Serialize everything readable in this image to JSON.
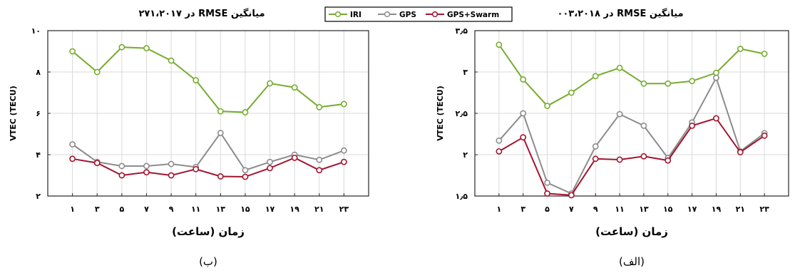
{
  "legend": {
    "items": [
      {
        "label": "IRI",
        "color": "#77ac30"
      },
      {
        "label": "GPS",
        "color": "#8c8c8c"
      },
      {
        "label": "GPS+Swarm",
        "color": "#a2142f"
      }
    ]
  },
  "chart_data": [
    {
      "type": "line",
      "panel": "left",
      "title": "میانگین RMSE در ۲۷۱،۲۰۱۷",
      "xlabel": "زمان (ساعت)",
      "ylabel": "VTEC (TECU)",
      "caption": "(ب)",
      "x": [
        1,
        3,
        5,
        7,
        9,
        11,
        13,
        15,
        17,
        19,
        21,
        23
      ],
      "x_tick_labels": [
        "۱",
        "۳",
        "۵",
        "۷",
        "۹",
        "۱۱",
        "۱۳",
        "۱۵",
        "۱۷",
        "۱۹",
        "۲۱",
        "۲۳"
      ],
      "xlim": [
        -1,
        25
      ],
      "ylim": [
        2,
        10
      ],
      "y_ticks": [
        2,
        4,
        6,
        8,
        10
      ],
      "y_tick_labels": [
        "۲",
        "۴",
        "۶",
        "۸",
        "۱۰"
      ],
      "grid": true,
      "series": [
        {
          "name": "IRI",
          "color": "#77ac30",
          "values": [
            9.0,
            8.0,
            9.2,
            9.15,
            8.55,
            7.6,
            6.1,
            6.05,
            7.45,
            7.25,
            6.3,
            6.45
          ]
        },
        {
          "name": "GPS",
          "color": "#8c8c8c",
          "values": [
            4.5,
            3.65,
            3.45,
            3.45,
            3.55,
            3.4,
            5.05,
            3.25,
            3.65,
            4.0,
            3.75,
            4.2
          ]
        },
        {
          "name": "GPS+Swarm",
          "color": "#a2142f",
          "values": [
            3.8,
            3.6,
            3.0,
            3.15,
            3.0,
            3.3,
            2.95,
            2.93,
            3.35,
            3.85,
            3.25,
            3.65
          ]
        }
      ]
    },
    {
      "type": "line",
      "panel": "right",
      "title": "میانگین RMSE در ۰۰۳،۲۰۱۸",
      "xlabel": "زمان (ساعت)",
      "ylabel": "VTEC (TECU)",
      "caption": "(الف)",
      "x": [
        1,
        3,
        5,
        7,
        9,
        11,
        13,
        15,
        17,
        19,
        21,
        23
      ],
      "x_tick_labels": [
        "۱",
        "۳",
        "۵",
        "۷",
        "۹",
        "۱۱",
        "۱۳",
        "۱۵",
        "۱۷",
        "۱۹",
        "۲۱",
        "۲۳"
      ],
      "xlim": [
        -1,
        25
      ],
      "ylim": [
        1.5,
        3.5
      ],
      "y_ticks": [
        1.5,
        2,
        2.5,
        3,
        3.5
      ],
      "y_tick_labels": [
        "۱٫۵",
        "۲",
        "۲٫۵",
        "۳",
        "۳٫۵"
      ],
      "grid": true,
      "series": [
        {
          "name": "IRI",
          "color": "#77ac30",
          "values": [
            3.33,
            2.91,
            2.59,
            2.75,
            2.95,
            3.05,
            2.86,
            2.86,
            2.89,
            2.99,
            3.28,
            3.22
          ]
        },
        {
          "name": "GPS",
          "color": "#8c8c8c",
          "values": [
            2.17,
            2.5,
            1.66,
            1.53,
            2.1,
            2.49,
            2.35,
            1.96,
            2.39,
            2.93,
            2.04,
            2.26
          ]
        },
        {
          "name": "GPS+Swarm",
          "color": "#a2142f",
          "values": [
            2.04,
            2.21,
            1.53,
            1.51,
            1.95,
            1.94,
            1.98,
            1.93,
            2.35,
            2.44,
            2.03,
            2.23
          ]
        }
      ]
    }
  ]
}
